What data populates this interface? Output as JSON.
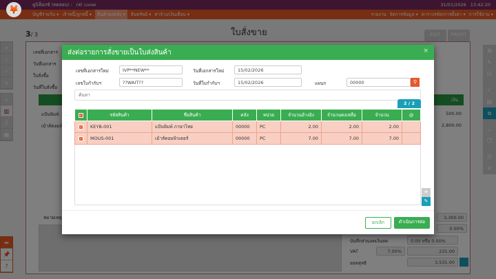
{
  "header": {
    "app_title": "คูนิฟ็อกซ์ (ทดสอบ) :",
    "user": "(4) cunei",
    "date": "31/01/2026",
    "time": "13:42:20"
  },
  "menu": {
    "left": [
      "บัญชีรายวัน ▾",
      "เจ้าหนี้/ลูกหนี้ ▾",
      "สินค้าคงคลัง ▾",
      "สินทรัพย์ ▾",
      "ค่าจ้าง/เงินเดือน ▾"
    ],
    "right": [
      "รายงาน",
      "จัดการข้อมูล ▾",
      "ตารางรหัส/การตั้งค่า ▾",
      "การใช้งาน ▾"
    ],
    "active_index": 2
  },
  "page": {
    "title": "ใบสั่งขาย",
    "record": "3",
    "total": "/ 3",
    "edit_label": "EDIT",
    "profit_label": "PROFIT",
    "fields": [
      "เลขที่เอกสาร",
      "วันที่เอกสาร",
      "ใบสั่งซื้อ",
      "วันที่ใบสั่งซื้อ"
    ],
    "bg_rows": [
      {
        "name": "แป้นพิมพ์",
        "amount": "500.00"
      },
      {
        "name": "เม้าส์คอมพ์",
        "amount": "2,800.00"
      }
    ],
    "bg_col_header": "เงิน",
    "remark_label": "หมายเหตุ",
    "subtotal": "3,300.00",
    "discount_pct": "0.00%",
    "discount_label": "บันทึกส่วนลดเงินสด",
    "discount_value": "0.00 หรือ 0.00%",
    "vat_label": "VAT",
    "vat_rate": "7.00%",
    "vat_amount": "231.00",
    "net_label": "ยอดสุทธิ",
    "net_amount": "3,531.00"
  },
  "modal": {
    "title": "ส่งต่อรายการสั่งขายเป็นใบส่งสินค้า",
    "close": "×",
    "new_doc_no_label": "เลขที่เอกสารใหม่",
    "new_doc_no": "IVP**NEW**",
    "new_doc_date_label": "วันที่เอกสารใหม่",
    "new_doc_date": "15/02/2026",
    "tax_inv_no_label": "เลขใบกำกับฯ",
    "tax_inv_no": "??WAIT??",
    "tax_inv_date_label": "วันที่ใบกำกับฯ",
    "tax_inv_date": "15/02/2026",
    "dept_label": "แผนก",
    "dept": "00000",
    "search_placeholder": "ค้นหา",
    "page_indicator": "2 / 2",
    "columns": [
      "รหัสสินค้า",
      "ชื่อสินค้า",
      "คลัง",
      "หน่วย",
      "จำนวนอ้างอิง",
      "จำนวนคงเหลือ",
      "จำนวน",
      "@"
    ],
    "rows": [
      {
        "code": "KEYB-001",
        "name": "แป้นพิมพ์ ภาษาไทย",
        "wh": "00000",
        "unit": "PC",
        "ref": "2.00",
        "remain": "2.00",
        "qty": "2.00"
      },
      {
        "code": "MOUS-001",
        "name": "เม้าส์คอมพิวเตอร์",
        "wh": "00000",
        "unit": "PC",
        "ref": "7.00",
        "remain": "7.00",
        "qty": "7.00"
      }
    ],
    "cancel_label": "ยกเลิก",
    "proceed_label": "ดำเนินการต่อ"
  },
  "colors": {
    "accent_green": "#3aad52",
    "header_purple": "#7b2b61",
    "menu_orange": "#f05c24",
    "row_selected": "#f8cfc2",
    "teal": "#1a9fb8"
  }
}
